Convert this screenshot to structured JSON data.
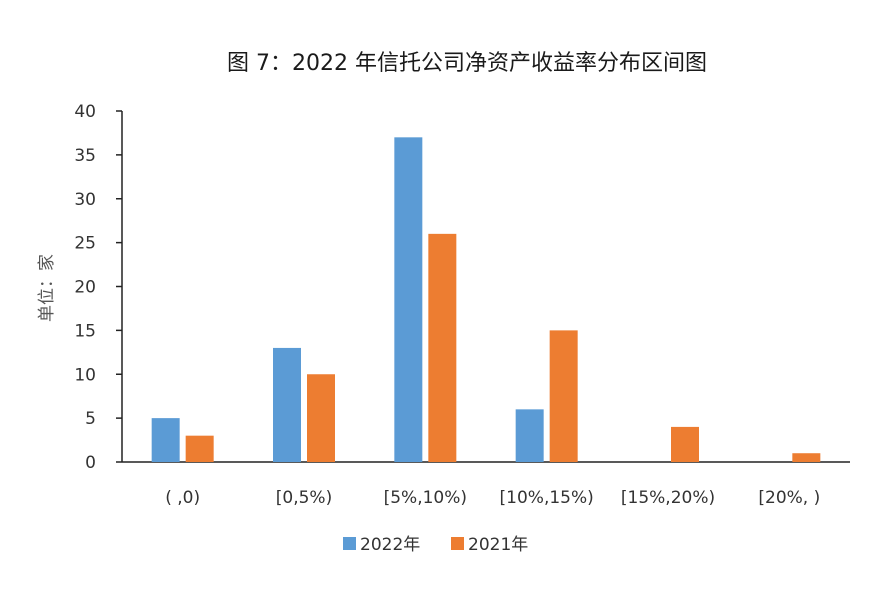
{
  "chart_data": {
    "type": "bar",
    "title": "图 7：2022 年信托公司净资产收益率分布区间图",
    "ylabel": "单位：家",
    "xlabel": "",
    "categories": [
      "( ,0)",
      "[0,5%)",
      "[5%,10%)",
      "[10%,15%)",
      "[15%,20%)",
      "[20%, )"
    ],
    "series": [
      {
        "name": "2022年",
        "color": "#5B9BD5",
        "values": [
          5,
          13,
          37,
          6,
          0,
          0
        ]
      },
      {
        "name": "2021年",
        "color": "#ED7D31",
        "values": [
          3,
          10,
          26,
          15,
          4,
          1
        ]
      }
    ],
    "ylim": [
      0,
      40
    ],
    "yticks": [
      0,
      5,
      10,
      15,
      20,
      25,
      30,
      35,
      40
    ],
    "grid": false,
    "legend_position": "bottom"
  }
}
